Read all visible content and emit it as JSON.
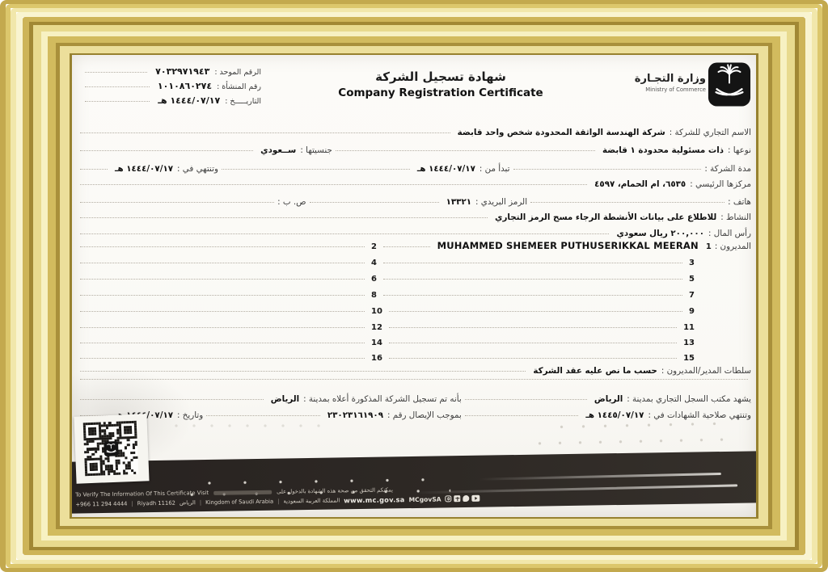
{
  "colors": {
    "frame_gold": "#d2bb5e",
    "footer_band": "#2b2520",
    "paper": "#fcfbf8",
    "text": "#1c1c1c"
  },
  "header": {
    "meta": [
      {
        "label": "الرقم الموحد :",
        "value": "٧٠٣٢٩٧١٩٤٣"
      },
      {
        "label": "رقم المنشأة :",
        "value": "١٠١٠٨٦٠٢٧٤"
      },
      {
        "label": "التاريـــــخ :",
        "value": "١٤٤٤/٠٧/١٧ هـ"
      }
    ],
    "title_ar": "شهادة تسجيل الشركة",
    "title_en": "Company Registration Certificate",
    "ministry_ar": "وزارة التجـارة",
    "ministry_en": "Ministry of Commerce"
  },
  "fields": {
    "company_name": {
      "label": "الاسم التجاري للشركة :",
      "value": "شركة الهندسة الواثقة المحدودة شخص واحد قابضة"
    },
    "type": {
      "label": "نوعها :",
      "value": "ذات مسئولية محدودة ١ قابضة",
      "nationality_label": "جنسيتها :",
      "nationality_value": "ســعودي"
    },
    "duration": {
      "label": "مدة الشركة :",
      "start_label": "تبدأ من :",
      "start_value": "١٤٤٤/٠٧/١٧ هـ",
      "end_label": "وتنتهي في :",
      "end_value": "١٤٤٤/٠٧/١٧ هـ"
    },
    "head_office": {
      "label": "مركزها الرئيسي :",
      "value": "٦٥٣٥، ام الحمام، ٤٥٩٧"
    },
    "phone": {
      "label": "هاتف :",
      "postal_label": "الرمز البريدي :",
      "postal_value": "١٣٣٢١",
      "pobox_label": "ص. ب :"
    },
    "activity": {
      "label": "النشاط :",
      "value": "للاطلاع على بيانات الأنشطة الرجاء مسح الرمز التجاري"
    },
    "capital": {
      "label": "رأس المال :",
      "value": "٢٠٠,٠٠٠ ريال سعودي"
    },
    "managers": {
      "label": "المديرون :",
      "entries": [
        {
          "num": "1",
          "name": "MUHAMMED SHEMEER PUTHUSERIKKAL MEERAN"
        },
        {
          "num": "2",
          "name": ""
        },
        {
          "num": "3",
          "name": ""
        },
        {
          "num": "4",
          "name": ""
        },
        {
          "num": "5",
          "name": ""
        },
        {
          "num": "6",
          "name": ""
        },
        {
          "num": "7",
          "name": ""
        },
        {
          "num": "8",
          "name": ""
        },
        {
          "num": "9",
          "name": ""
        },
        {
          "num": "10",
          "name": ""
        },
        {
          "num": "11",
          "name": ""
        },
        {
          "num": "12",
          "name": ""
        },
        {
          "num": "13",
          "name": ""
        },
        {
          "num": "14",
          "name": ""
        },
        {
          "num": "15",
          "name": ""
        },
        {
          "num": "16",
          "name": ""
        }
      ]
    },
    "powers": {
      "label": "سلطات المدير/المديرون :",
      "value": "حسب ما نص عليه عقد الشركة"
    }
  },
  "attestation": {
    "registry_label": "يشهد مكتب السجل التجاري بمدينة :",
    "registry_city": "الرياض",
    "registered_label": "بأنه تم تسجيل الشركة المذكورة أعلاه بمدينة :",
    "registered_city": "الرياض",
    "expiry_label": "وتنتهي صلاحية الشهادات في :",
    "expiry_value": "١٤٤٥/٠٧/١٧ هـ",
    "receipt_label": "بموجب الإيصال رقم :",
    "receipt_value": "٢٣٠٢٣١٦١٩٠٩",
    "receipt_date_label": "وتاريخ :",
    "receipt_date_value": "١٤٤٤/٠٧/١٧ هـ"
  },
  "footer": {
    "verify_en": "To Verify The Information Of This Certificate Visit",
    "verify_ar": "يمكنكم التحقق من صحة هذه الشهادة بالدخول على",
    "phone": "+966 11 294 4444",
    "city_en": "Riyadh 11162",
    "city_ar": "الرياض",
    "country_en": "Kingdom of Saudi Arabia",
    "country_ar": "المملكة العربية السعودية",
    "website": "www.mc.gov.sa",
    "social_handle": "MCgovSA",
    "separator": "|",
    "icons": [
      "instagram-icon",
      "facebook-icon",
      "twitter-icon",
      "youtube-icon"
    ]
  }
}
